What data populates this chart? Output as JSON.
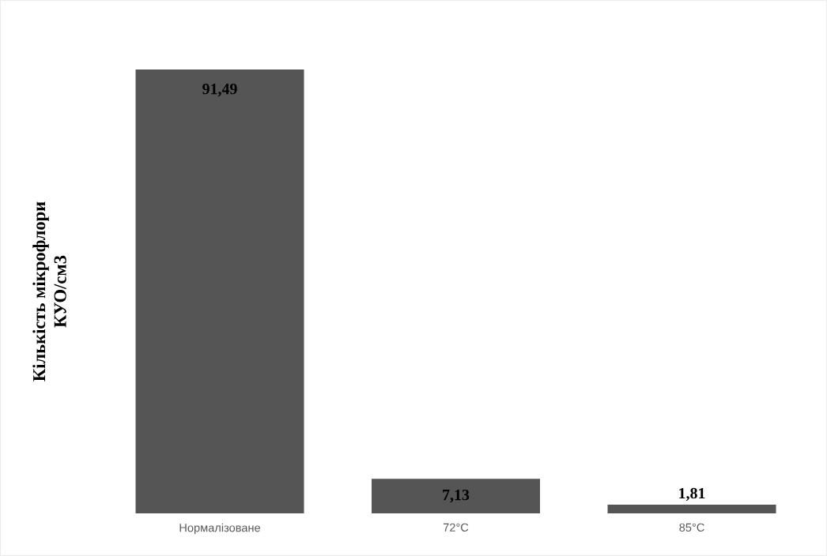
{
  "chart_data": {
    "type": "bar",
    "ylabel": "Кількість мікрофлори КУО/см3",
    "categories": [
      "Нормалізоване",
      "72°C",
      "85°C"
    ],
    "values": [
      91.49,
      7.13,
      1.81
    ],
    "value_labels": [
      "91,49",
      "7,13",
      "1,81"
    ],
    "color": "#555555",
    "legend": false
  }
}
